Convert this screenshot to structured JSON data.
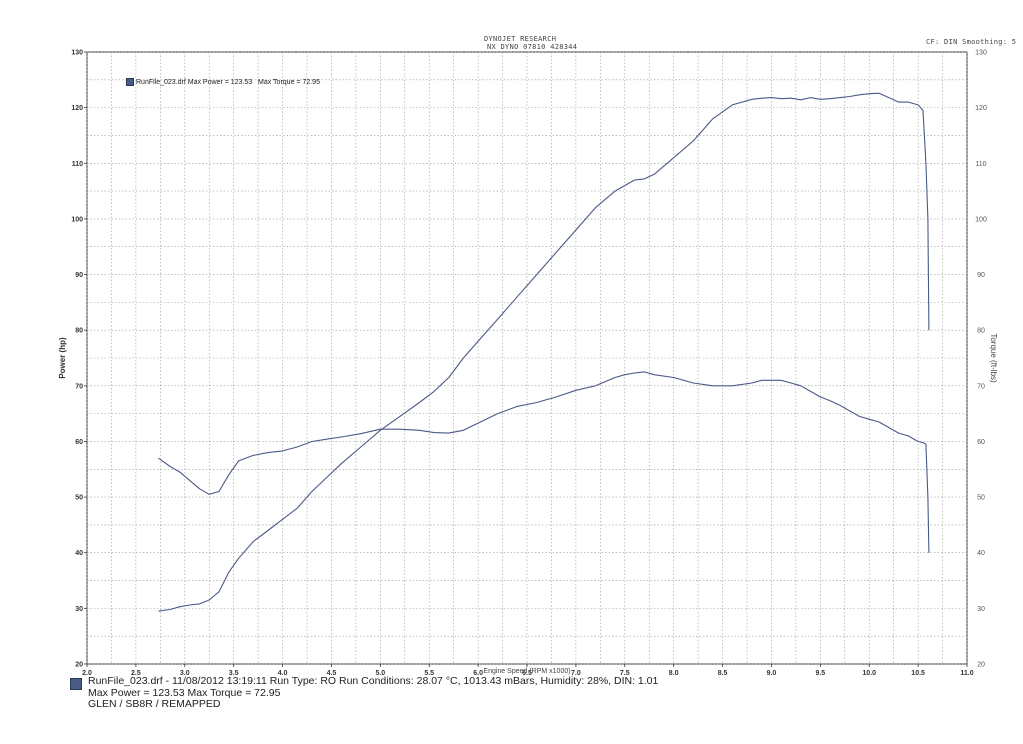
{
  "header": {
    "company": "DYNOJET RESEARCH",
    "dyno": "NX DYNO 07810 428344",
    "settings": "CF: DIN  Smoothing: 5"
  },
  "legend": {
    "run": "RunFile_023.drf",
    "max_power": "Max Power = 123.53",
    "max_torque": "Max Torque = 72.95"
  },
  "footer": {
    "line1": "RunFile_023.drf - 11/08/2012 13:19:11  Run Type: RO  Run Conditions: 28.07 °C, 1013.43 mBars,  Humidity:  28%, DIN: 1.01",
    "line2": "Max Power = 123.53  Max Torque = 72.95",
    "line3": "GLEN / SB8R / REMAPPED"
  },
  "colors": {
    "series": "#4a5a86",
    "grid": "#9a9a9a",
    "axis": "#333333"
  },
  "chart_data": {
    "type": "line",
    "xlabel": "Engine Speed (RPM x1000)",
    "ylabel": "Power (hp)",
    "y2label": "Torque (ft-lbs)",
    "xlim": [
      2.0,
      11.0
    ],
    "ylim": [
      20,
      130
    ],
    "y2lim": [
      20,
      130
    ],
    "x_ticks": [
      "2.0",
      "2.5",
      "3.0",
      "3.5",
      "4.0",
      "4.5",
      "5.0",
      "5.5",
      "6.0",
      "6.5",
      "7.0",
      "7.5",
      "8.0",
      "8.5",
      "9.0",
      "9.5",
      "10.0",
      "10.5",
      "11.0"
    ],
    "y_ticks": [
      "20",
      "30",
      "40",
      "50",
      "60",
      "70",
      "80",
      "90",
      "100",
      "110",
      "120",
      "130"
    ],
    "y2_ticks": [
      "20",
      "30",
      "40",
      "50",
      "60",
      "70",
      "80",
      "90",
      "100",
      "110",
      "120",
      "130"
    ],
    "grid": true,
    "series": [
      {
        "name": "Max Power = 123.53",
        "axis": "left",
        "x": [
          2.73,
          2.85,
          2.95,
          3.05,
          3.15,
          3.25,
          3.35,
          3.45,
          3.55,
          3.7,
          3.85,
          4.0,
          4.15,
          4.3,
          4.45,
          4.6,
          4.8,
          5.0,
          5.2,
          5.4,
          5.55,
          5.7,
          5.85,
          6.0,
          6.2,
          6.4,
          6.6,
          6.8,
          7.0,
          7.2,
          7.4,
          7.5,
          7.6,
          7.7,
          7.8,
          8.0,
          8.2,
          8.4,
          8.6,
          8.8,
          8.9,
          9.0,
          9.1,
          9.2,
          9.3,
          9.4,
          9.5,
          9.6,
          9.7,
          9.8,
          9.9,
          10.0,
          10.1,
          10.2,
          10.3,
          10.4,
          10.5,
          10.55,
          10.58,
          10.6,
          10.61
        ],
        "y": [
          29.5,
          29.8,
          30.3,
          30.6,
          30.8,
          31.5,
          33,
          36.5,
          39,
          42,
          44,
          46,
          48,
          51,
          53.5,
          56,
          59,
          62,
          64.5,
          67,
          69,
          71.5,
          75,
          78,
          82,
          86,
          90,
          94,
          98,
          102,
          105,
          106,
          107,
          107.2,
          108,
          111,
          114,
          118,
          120.5,
          121.5,
          121.7,
          121.8,
          121.6,
          121.7,
          121.4,
          121.8,
          121.5,
          121.6,
          121.8,
          122,
          122.3,
          122.5,
          122.6,
          121.8,
          121,
          121,
          120.5,
          119.5,
          110,
          100,
          80
        ]
      },
      {
        "name": "Max Torque = 72.95",
        "axis": "right",
        "x": [
          2.73,
          2.85,
          2.95,
          3.05,
          3.15,
          3.25,
          3.35,
          3.45,
          3.55,
          3.7,
          3.85,
          4.0,
          4.15,
          4.3,
          4.45,
          4.6,
          4.8,
          5.0,
          5.2,
          5.4,
          5.55,
          5.7,
          5.85,
          6.0,
          6.2,
          6.4,
          6.6,
          6.8,
          7.0,
          7.2,
          7.4,
          7.5,
          7.6,
          7.7,
          7.8,
          8.0,
          8.2,
          8.4,
          8.6,
          8.8,
          8.9,
          9.0,
          9.1,
          9.2,
          9.3,
          9.4,
          9.5,
          9.6,
          9.7,
          9.8,
          9.9,
          10.0,
          10.1,
          10.2,
          10.3,
          10.4,
          10.5,
          10.55,
          10.58,
          10.6,
          10.61
        ],
        "y": [
          57,
          55.5,
          54.5,
          53,
          51.5,
          50.5,
          51,
          54,
          56.5,
          57.5,
          58,
          58.3,
          59,
          60,
          60.4,
          60.8,
          61.4,
          62.2,
          62.2,
          62,
          61.6,
          61.5,
          62,
          63.3,
          65,
          66.3,
          67,
          68,
          69.2,
          70,
          71.5,
          72,
          72.3,
          72.5,
          72,
          71.5,
          70.5,
          70,
          70,
          70.5,
          71,
          71,
          71,
          70.5,
          70,
          69,
          68,
          67.3,
          66.5,
          65.5,
          64.5,
          64,
          63.5,
          62.5,
          61.5,
          61,
          60,
          59.8,
          59.5,
          50,
          40
        ]
      }
    ]
  }
}
